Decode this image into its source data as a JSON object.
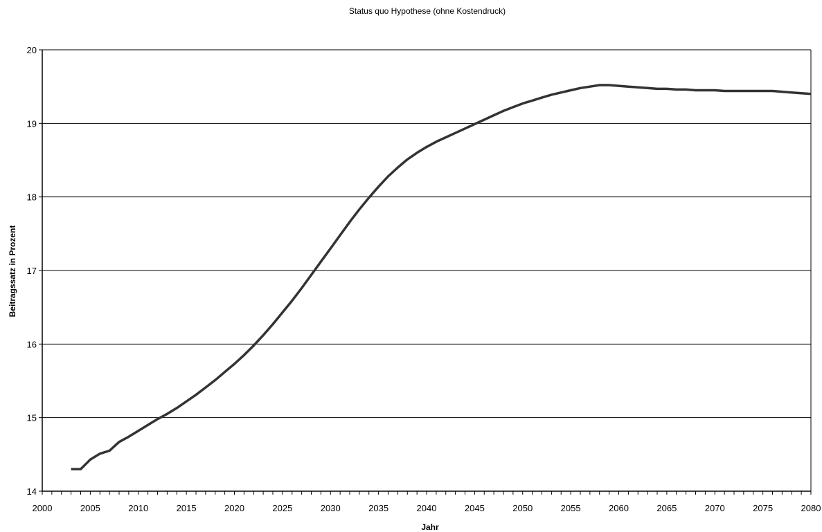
{
  "chart_data": {
    "type": "line",
    "title": "Status quo Hypothese (ohne Kostendruck)",
    "xlabel": "Jahr",
    "ylabel": "Beitragssatz in Prozent",
    "xlim": [
      2000,
      2080
    ],
    "ylim": [
      14,
      20
    ],
    "grid": "horizontal",
    "legend": "none",
    "line_color": "#333333",
    "grid_color": "#000000",
    "x_ticks": [
      2000,
      2005,
      2010,
      2015,
      2020,
      2025,
      2030,
      2035,
      2040,
      2045,
      2050,
      2055,
      2060,
      2065,
      2070,
      2075,
      2080
    ],
    "y_ticks": [
      14,
      15,
      16,
      17,
      18,
      19,
      20
    ],
    "series": [
      {
        "x": [
          2003,
          2004,
          2005,
          2006,
          2007,
          2008,
          2009,
          2010,
          2011,
          2012,
          2013,
          2014,
          2015,
          2016,
          2017,
          2018,
          2019,
          2020,
          2021,
          2022,
          2023,
          2024,
          2025,
          2026,
          2027,
          2028,
          2029,
          2030,
          2031,
          2032,
          2033,
          2034,
          2035,
          2036,
          2037,
          2038,
          2039,
          2040,
          2041,
          2042,
          2043,
          2044,
          2045,
          2046,
          2047,
          2048,
          2049,
          2050,
          2051,
          2052,
          2053,
          2054,
          2055,
          2056,
          2057,
          2058,
          2059,
          2060,
          2061,
          2062,
          2063,
          2064,
          2065,
          2066,
          2067,
          2068,
          2069,
          2070,
          2071,
          2072,
          2073,
          2074,
          2075,
          2076,
          2077,
          2078,
          2079,
          2080
        ],
        "values": [
          14.3,
          14.3,
          14.43,
          14.51,
          14.55,
          14.67,
          14.74,
          14.82,
          14.9,
          14.98,
          15.05,
          15.13,
          15.22,
          15.31,
          15.41,
          15.51,
          15.62,
          15.73,
          15.85,
          15.98,
          16.12,
          16.27,
          16.43,
          16.59,
          16.76,
          16.94,
          17.12,
          17.3,
          17.48,
          17.66,
          17.83,
          17.99,
          18.14,
          18.28,
          18.4,
          18.51,
          18.6,
          18.68,
          18.75,
          18.81,
          18.87,
          18.93,
          18.99,
          19.05,
          19.11,
          19.17,
          19.22,
          19.27,
          19.31,
          19.35,
          19.39,
          19.42,
          19.45,
          19.48,
          19.5,
          19.52,
          19.52,
          19.51,
          19.5,
          19.49,
          19.48,
          19.47,
          19.47,
          19.46,
          19.46,
          19.45,
          19.45,
          19.45,
          19.44,
          19.44,
          19.44,
          19.44,
          19.44,
          19.44,
          19.43,
          19.42,
          19.41,
          19.4
        ]
      }
    ]
  }
}
